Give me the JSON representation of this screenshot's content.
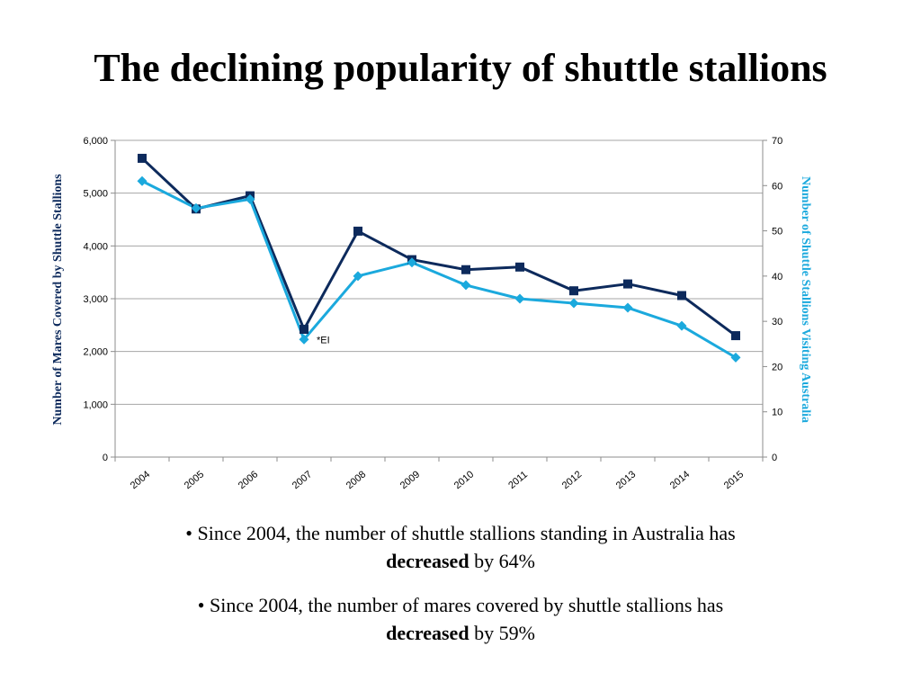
{
  "page": {
    "title": "The declining popularity of shuttle stallions"
  },
  "bullets": [
    {
      "prefix": "• Since 2004, the number of shuttle stallions standing in Australia has",
      "bold": "decreased",
      "suffix": " by 64%"
    },
    {
      "prefix": "• Since 2004, the number of mares covered by shuttle stallions has",
      "bold": "decreased",
      "suffix": " by  59%"
    }
  ],
  "colors": {
    "mares": "#0d2a5c",
    "stallions": "#1ba9dd",
    "grid": "#a6a6a6",
    "axis": "#8c8c8c"
  },
  "chart_data": {
    "type": "line",
    "title": "",
    "categories": [
      "2004",
      "2005",
      "2006",
      "2007",
      "2008",
      "2009",
      "2010",
      "2011",
      "2012",
      "2013",
      "2014",
      "2015"
    ],
    "ylabel": "Number of Mares Covered by Shuttle Stallions",
    "y2label": "Number of Shuttle Stallions Visiting Australia",
    "ylim": [
      0,
      6000
    ],
    "y2lim": [
      0,
      70
    ],
    "yticks": [
      "0",
      "1,000",
      "2,000",
      "3,000",
      "4,000",
      "5,000",
      "6,000"
    ],
    "y2ticks": [
      "0",
      "10",
      "20",
      "30",
      "40",
      "50",
      "60",
      "70"
    ],
    "grid": true,
    "series": [
      {
        "key": "mares",
        "axis": "left",
        "marker": "square",
        "values": [
          5660,
          4700,
          4950,
          2420,
          4280,
          3740,
          3550,
          3600,
          3150,
          3280,
          3060,
          2300
        ]
      },
      {
        "key": "stallions",
        "axis": "right",
        "marker": "diamond",
        "values": [
          61,
          55,
          57,
          26,
          40,
          43,
          38,
          35,
          34,
          33,
          29,
          22
        ]
      }
    ],
    "annotations": [
      {
        "text": "*EI",
        "category": "2007"
      }
    ]
  }
}
